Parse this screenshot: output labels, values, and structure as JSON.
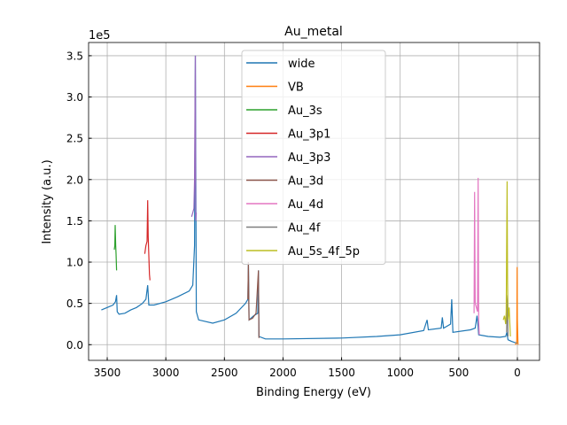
{
  "chart_data": {
    "type": "line",
    "title": "Au_metal",
    "xlabel": "Binding Energy (eV)",
    "ylabel": "Intensity (a.u.)",
    "y_offset_label": "1e5",
    "xlim": [
      3659,
      -189
    ],
    "xticks": [
      3500,
      3000,
      2500,
      2000,
      1500,
      1000,
      500,
      0
    ],
    "ylim": [
      -0.19,
      3.66
    ],
    "yticks": [
      {
        "value": 0,
        "label": "0.0"
      },
      {
        "value": 0.5,
        "label": "0.5"
      },
      {
        "value": 1,
        "label": "1.0"
      },
      {
        "value": 1.5,
        "label": "1.5"
      },
      {
        "value": 2,
        "label": "2.0"
      },
      {
        "value": 2.5,
        "label": "2.5"
      },
      {
        "value": 3,
        "label": "3.0"
      },
      {
        "value": 3.5,
        "label": "3.5"
      }
    ],
    "grid": true,
    "legend": "upper center",
    "series": [
      {
        "name": "wide",
        "color": "#1f77b4",
        "x": [
          3550,
          3500,
          3450,
          3430,
          3420,
          3415,
          3400,
          3350,
          3300,
          3250,
          3200,
          3170,
          3155,
          3145,
          3100,
          3000,
          2900,
          2800,
          2770,
          2755,
          2748,
          2740,
          2720,
          2600,
          2500,
          2400,
          2320,
          2300,
          2295,
          2290,
          2250,
          2215,
          2210,
          2205,
          2150,
          2000,
          1500,
          1200,
          1000,
          800,
          770,
          760,
          650,
          640,
          630,
          570,
          560,
          550,
          400,
          360,
          345,
          335,
          330,
          250,
          150,
          100,
          90,
          80,
          50,
          10,
          0
        ],
        "values": [
          0.42,
          0.45,
          0.48,
          0.52,
          0.6,
          0.4,
          0.37,
          0.38,
          0.42,
          0.45,
          0.5,
          0.55,
          0.72,
          0.48,
          0.48,
          0.52,
          0.58,
          0.65,
          0.72,
          1.2,
          3.5,
          0.4,
          0.3,
          0.26,
          0.3,
          0.38,
          0.5,
          0.55,
          1.0,
          0.3,
          0.35,
          0.38,
          0.9,
          0.1,
          0.07,
          0.07,
          0.08,
          0.1,
          0.12,
          0.17,
          0.3,
          0.18,
          0.2,
          0.33,
          0.2,
          0.25,
          0.55,
          0.15,
          0.18,
          0.2,
          0.35,
          0.22,
          0.12,
          0.1,
          0.09,
          0.1,
          0.15,
          0.06,
          0.04,
          0.02,
          0.02
        ]
      },
      {
        "name": "VB",
        "color": "#ff7f0e",
        "x": [
          20,
          10,
          5,
          2,
          0,
          -5
        ],
        "values": [
          0.0,
          0.01,
          0.05,
          0.94,
          0.3,
          0.0
        ]
      },
      {
        "name": "Au_3s",
        "color": "#2ca02c",
        "x": [
          3440,
          3435,
          3432,
          3428,
          3425,
          3420
        ],
        "values": [
          1.15,
          1.2,
          1.45,
          1.2,
          1.1,
          0.9
        ]
      },
      {
        "name": "Au_3p1",
        "color": "#d62728",
        "x": [
          3180,
          3170,
          3160,
          3155,
          3150,
          3140,
          3135
        ],
        "values": [
          1.1,
          1.2,
          1.25,
          1.75,
          1.3,
          0.85,
          0.78
        ]
      },
      {
        "name": "Au_3p3",
        "color": "#9467bd",
        "x": [
          2780,
          2770,
          2760,
          2755,
          2748,
          2745,
          2740
        ],
        "values": [
          1.55,
          1.6,
          1.65,
          2.0,
          3.5,
          1.5,
          1.6
        ]
      },
      {
        "name": "Au_3d",
        "color": "#8c564b",
        "x": [
          2300,
          2295,
          2290,
          2260,
          2230,
          2210,
          2205
        ],
        "values": [
          0.55,
          1.0,
          0.3,
          0.32,
          0.38,
          0.9,
          0.08
        ]
      },
      {
        "name": "Au_4d",
        "color": "#e377c2",
        "x": [
          370,
          365,
          360,
          350,
          340,
          335,
          330,
          325
        ],
        "values": [
          0.38,
          1.85,
          0.5,
          0.45,
          0.4,
          2.02,
          0.3,
          0.12
        ]
      },
      {
        "name": "Au_4f",
        "color": "#7f7f7f",
        "x": [
          92,
          88,
          84,
          80
        ],
        "values": [
          0.15,
          0.5,
          0.6,
          0.1
        ]
      },
      {
        "name": "Au_5s_4f_5p",
        "color": "#bcbd22",
        "x": [
          120,
          110,
          100,
          95,
          88,
          84,
          80,
          70,
          60
        ],
        "values": [
          0.3,
          0.35,
          0.25,
          0.4,
          1.98,
          0.8,
          0.3,
          0.45,
          0.1
        ]
      }
    ]
  }
}
